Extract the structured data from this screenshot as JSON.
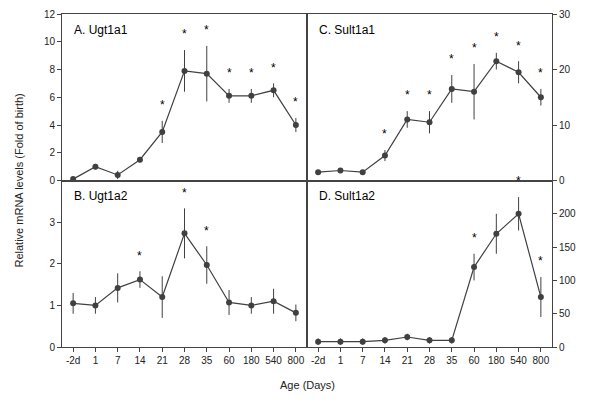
{
  "chart_data": [
    {
      "type": "line",
      "title": "A. Ugt1a1",
      "categories": [
        "-2d",
        "1",
        "7",
        "14",
        "21",
        "28",
        "35",
        "60",
        "180",
        "540",
        "800"
      ],
      "values": [
        0.1,
        1.0,
        0.4,
        1.5,
        3.5,
        7.9,
        7.7,
        6.1,
        6.1,
        6.5,
        4.0
      ],
      "yerr": [
        0.1,
        0.2,
        0.3,
        0.2,
        0.8,
        1.5,
        2.0,
        0.5,
        0.5,
        0.5,
        0.5
      ],
      "annotations": [
        {
          "x": "21",
          "text": "*"
        },
        {
          "x": "28",
          "text": "*"
        },
        {
          "x": "35",
          "text": "*"
        },
        {
          "x": "60",
          "text": "*"
        },
        {
          "x": "180",
          "text": "*"
        },
        {
          "x": "540",
          "text": "*"
        },
        {
          "x": "800",
          "text": "*"
        }
      ],
      "ylim": [
        0,
        12
      ],
      "yticks": [
        0,
        2,
        4,
        6,
        8,
        10,
        12
      ],
      "color": "#404040",
      "marker": "circle",
      "grid": false,
      "tick_labels": "y"
    },
    {
      "type": "line",
      "title": "B. Ugt1a2",
      "categories": [
        "-2d",
        "1",
        "7",
        "14",
        "21",
        "28",
        "35",
        "60",
        "180",
        "540",
        "800"
      ],
      "values": [
        1.05,
        1.0,
        1.42,
        1.62,
        1.2,
        2.73,
        1.97,
        1.07,
        1.0,
        1.1,
        0.82
      ],
      "yerr": [
        0.25,
        0.2,
        0.35,
        0.2,
        0.5,
        0.6,
        0.45,
        0.3,
        0.2,
        0.3,
        0.2
      ],
      "annotations": [
        {
          "x": "14",
          "text": "*"
        },
        {
          "x": "28",
          "text": "*"
        },
        {
          "x": "35",
          "text": "*"
        }
      ],
      "ylim": [
        0,
        4
      ],
      "yticks": [
        0,
        1,
        2,
        3
      ],
      "color": "#404040",
      "marker": "circle",
      "grid": false
    },
    {
      "type": "line",
      "title": "C. Sult1a1",
      "categories": [
        "-2d",
        "1",
        "7",
        "14",
        "21",
        "28",
        "35",
        "60",
        "180",
        "540",
        "800"
      ],
      "values": [
        1.5,
        1.8,
        1.5,
        4.5,
        11.0,
        10.5,
        16.5,
        16.0,
        21.5,
        19.5,
        15.0
      ],
      "yerr": [
        0.4,
        0.4,
        0.3,
        1.0,
        1.5,
        2.0,
        2.5,
        5.0,
        1.5,
        2.0,
        1.5
      ],
      "annotations": [
        {
          "x": "14",
          "text": "*"
        },
        {
          "x": "21",
          "text": "*"
        },
        {
          "x": "28",
          "text": "*"
        },
        {
          "x": "35",
          "text": "*"
        },
        {
          "x": "60",
          "text": "*"
        },
        {
          "x": "180",
          "text": "*"
        },
        {
          "x": "540",
          "text": "*"
        },
        {
          "x": "800",
          "text": "*"
        }
      ],
      "ylim": [
        0,
        30
      ],
      "yticks": [
        0,
        10,
        20,
        30
      ],
      "color": "#404040",
      "marker": "circle",
      "grid": false,
      "tick_labels": "y"
    },
    {
      "type": "line",
      "title": "D. Sult1a2",
      "categories": [
        "-2d",
        "1",
        "7",
        "14",
        "21",
        "28",
        "35",
        "60",
        "180",
        "540",
        "800"
      ],
      "values": [
        8,
        8,
        8,
        10,
        15,
        10,
        10,
        120,
        170,
        200,
        75
      ],
      "yerr": [
        5,
        5,
        5,
        5,
        5,
        5,
        5,
        20,
        30,
        25,
        30
      ],
      "annotations": [
        {
          "x": "60",
          "text": "*"
        },
        {
          "x": "540",
          "text": "*"
        },
        {
          "x": "800",
          "text": "*"
        }
      ],
      "ylim": [
        0,
        250
      ],
      "yticks": [
        0,
        50,
        100,
        150,
        200
      ],
      "color": "#404040",
      "marker": "circle",
      "grid": false
    }
  ],
  "xlabel": "Age (Days)",
  "ylabel": "Relative mRNA levels (Fold of birth)"
}
